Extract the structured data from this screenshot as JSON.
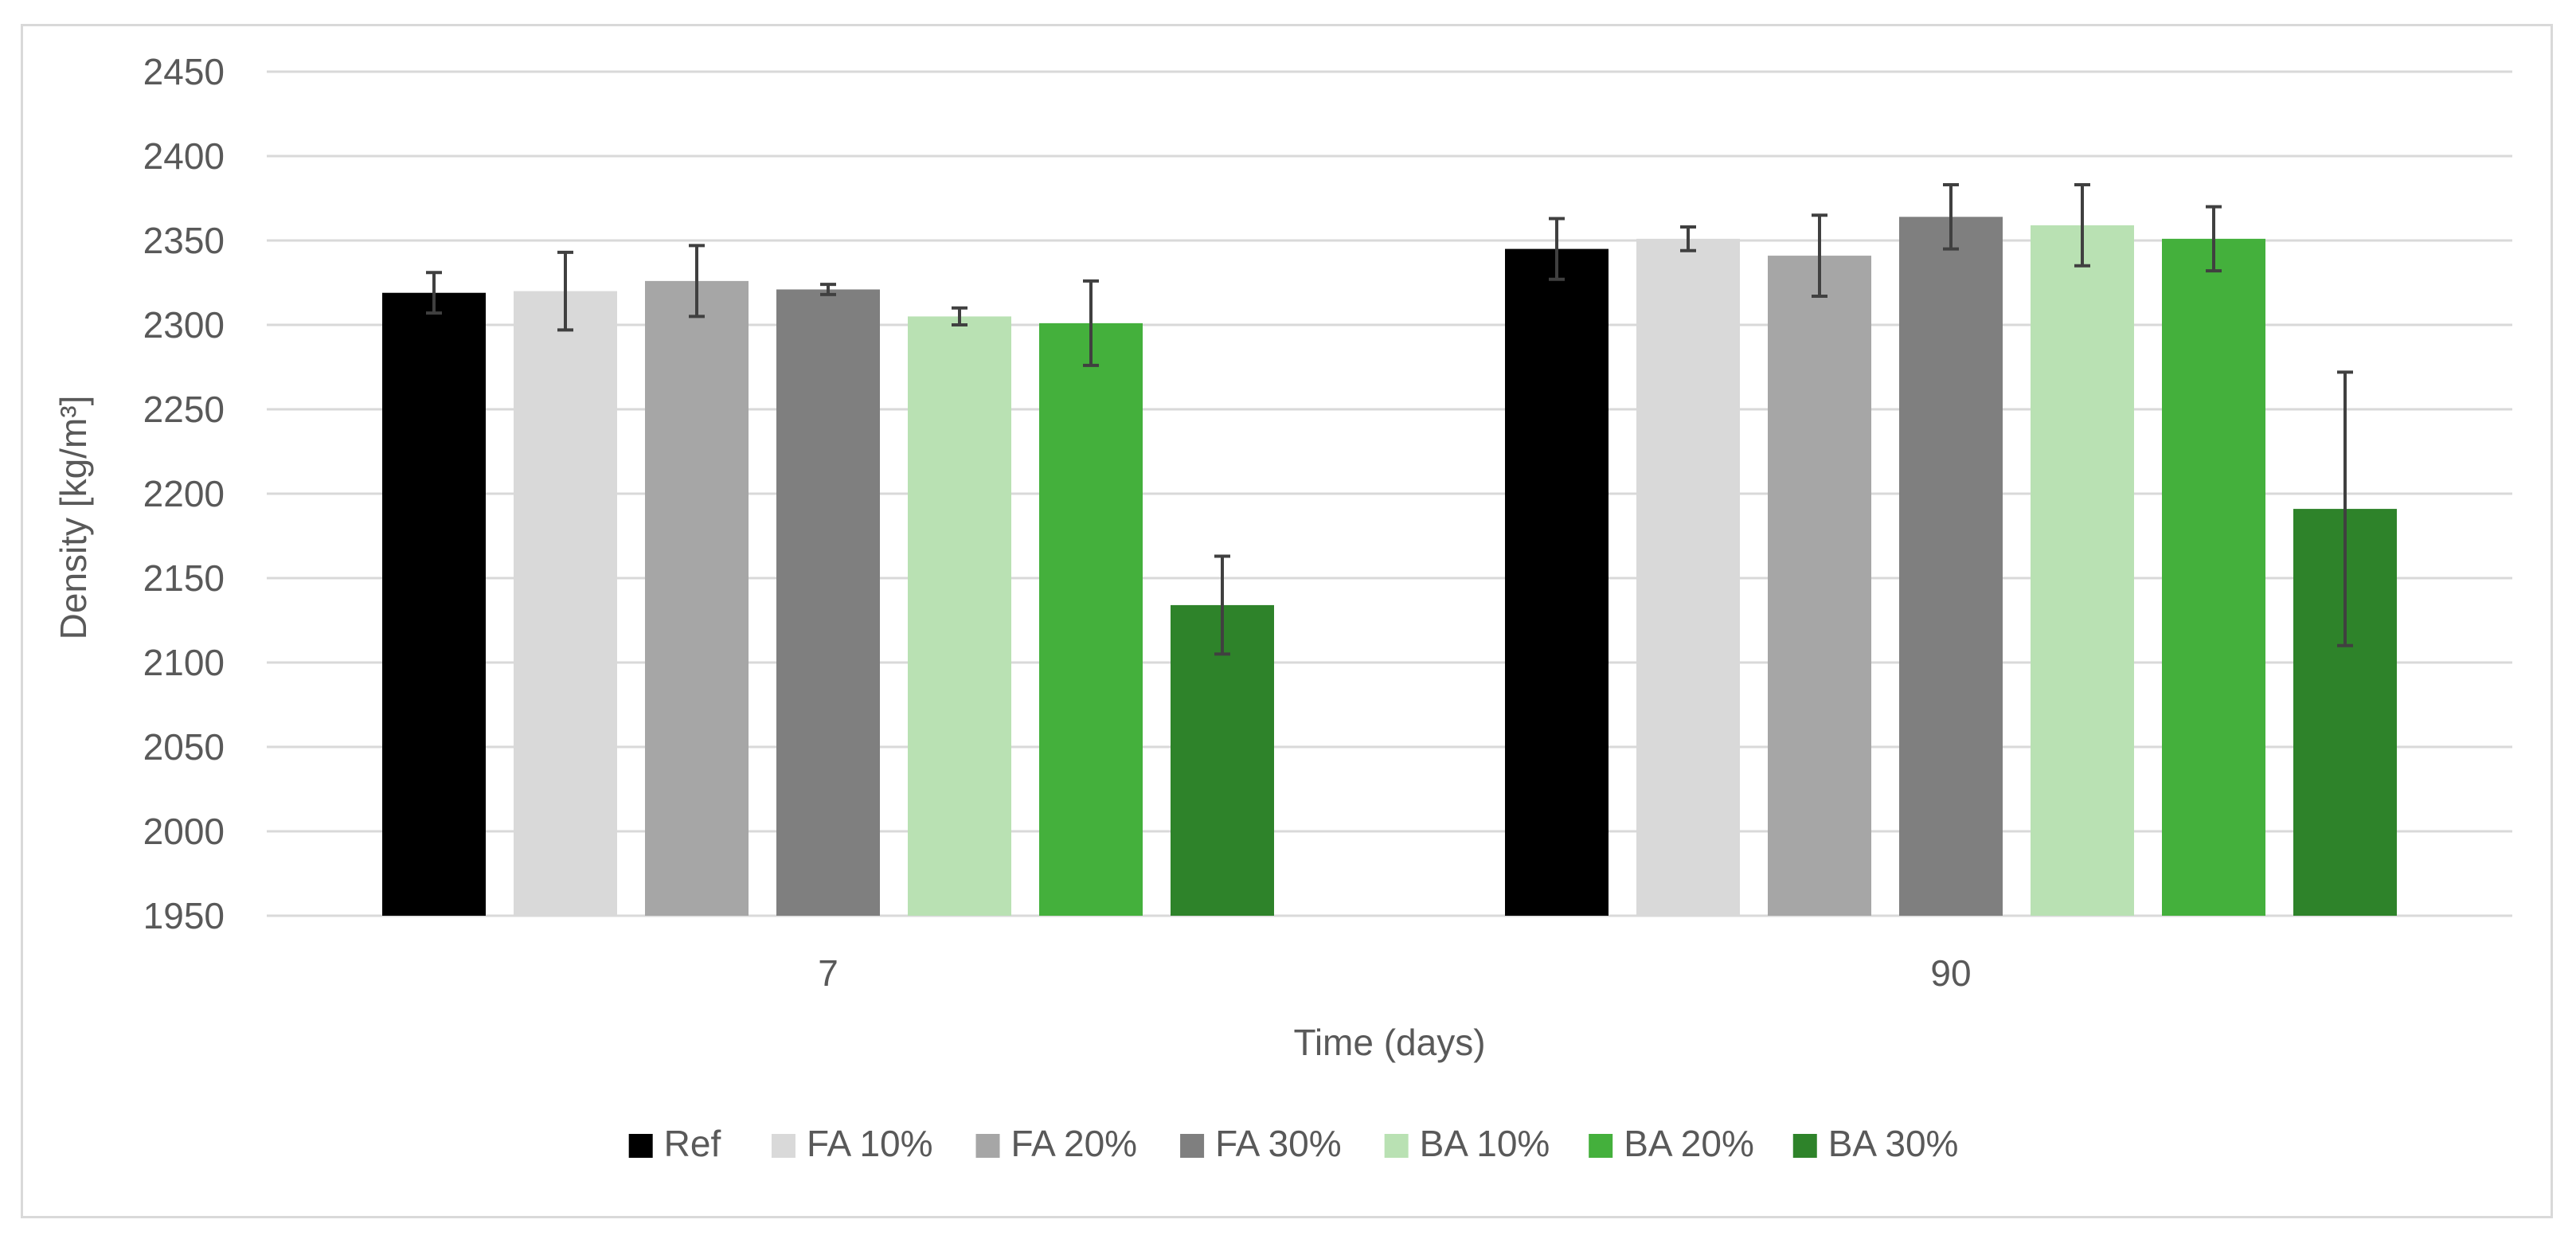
{
  "chart_data": {
    "type": "bar",
    "title": "",
    "xlabel": "Time (days)",
    "ylabel": "Density [kg/m³]",
    "ylim": [
      1950,
      2450
    ],
    "yticks": [
      1950,
      2000,
      2050,
      2100,
      2150,
      2200,
      2250,
      2300,
      2350,
      2400,
      2450
    ],
    "grid": true,
    "legend_position": "bottom",
    "categories": [
      "7",
      "90"
    ],
    "series": [
      {
        "name": "Ref",
        "color": "#000000",
        "values": [
          2319,
          2345
        ],
        "errors": [
          12,
          18
        ]
      },
      {
        "name": "FA 10%",
        "color": "#d9d9d9",
        "values": [
          2320,
          2351
        ],
        "errors": [
          23,
          7
        ]
      },
      {
        "name": "FA 20%",
        "color": "#a6a6a6",
        "values": [
          2326,
          2341
        ],
        "errors": [
          21,
          24
        ]
      },
      {
        "name": "FA 30%",
        "color": "#7f7f7f",
        "values": [
          2321,
          2364
        ],
        "errors": [
          3,
          19
        ]
      },
      {
        "name": "BA 10%",
        "color": "#b9e1b3",
        "values": [
          2305,
          2359
        ],
        "errors": [
          5,
          24
        ]
      },
      {
        "name": "BA 20%",
        "color": "#44b03c",
        "values": [
          2301,
          2351
        ],
        "errors": [
          25,
          19
        ]
      },
      {
        "name": "BA 30%",
        "color": "#2e832a",
        "values": [
          2134,
          2191
        ],
        "errors": [
          29,
          81
        ]
      }
    ]
  }
}
